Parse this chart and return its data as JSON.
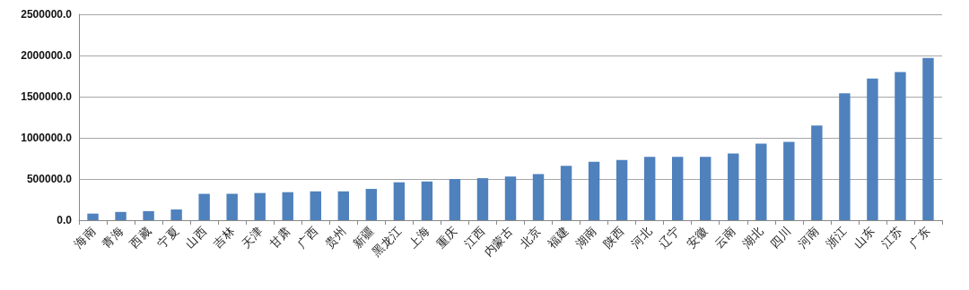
{
  "chart_data": {
    "type": "bar",
    "categories": [
      "海南",
      "青海",
      "西藏",
      "宁夏",
      "山西",
      "吉林",
      "天津",
      "甘肃",
      "广西",
      "贵州",
      "新疆",
      "黑龙江",
      "上海",
      "重庆",
      "江西",
      "内蒙古",
      "北京",
      "福建",
      "湖南",
      "陕西",
      "河北",
      "辽宁",
      "安徽",
      "云南",
      "湖北",
      "四川",
      "河南",
      "浙江",
      "山东",
      "江苏",
      "广东"
    ],
    "values": [
      80000,
      100000,
      110000,
      130000,
      320000,
      320000,
      330000,
      340000,
      350000,
      350000,
      380000,
      460000,
      470000,
      500000,
      510000,
      530000,
      560000,
      660000,
      710000,
      730000,
      770000,
      770000,
      770000,
      810000,
      930000,
      950000,
      1150000,
      1540000,
      1720000,
      1800000,
      1970000
    ],
    "color": "#4f81bd",
    "ylim": [
      0,
      2500000
    ],
    "yticks": [
      {
        "value": 0,
        "label": "0.0"
      },
      {
        "value": 500000,
        "label": "500000.0"
      },
      {
        "value": 1000000,
        "label": "1000000.0"
      },
      {
        "value": 1500000,
        "label": "1500000.0"
      },
      {
        "value": 2000000,
        "label": "2000000.0"
      },
      {
        "value": 2500000,
        "label": "2500000.0"
      }
    ],
    "grid": "y"
  }
}
